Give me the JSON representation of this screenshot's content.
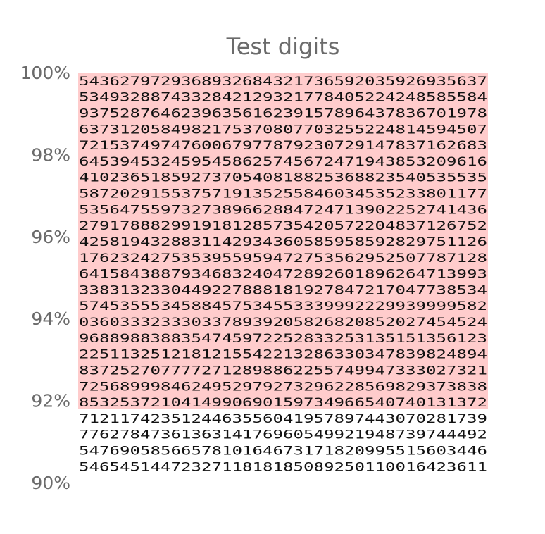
{
  "chart_data": {
    "type": "heatmap",
    "title": "Test digits",
    "xlabel": "",
    "ylabel": "",
    "ylim": [
      90,
      100
    ],
    "y_ticks": [
      {
        "value": 100,
        "label": "100%"
      },
      {
        "value": 98,
        "label": "98%"
      },
      {
        "value": 96,
        "label": "96%"
      },
      {
        "value": 94,
        "label": "94%"
      },
      {
        "value": 92,
        "label": "92%"
      },
      {
        "value": 90,
        "label": "90%"
      }
    ],
    "grid": false,
    "legend": "none",
    "highlight_above": 91.8,
    "highlight_color": "#ffcccc",
    "ink_color": "#111111",
    "rows": [
      "5436279729368932684321736592035926935637",
      "5349328874332842129321778405224248585584",
      "9375287646239635616239157896437836701978",
      "6373120584982175370807703255224814594507",
      "7215374974760067977879230729147837162683",
      "6453945324595458625745672471943853209616",
      "4102365185927370540818825368823540535535",
      "5872029155375719135255846034535233801177",
      "5356475597327389662884724713902252741436",
      "2791788829919181285735420572204837126752",
      "4258194328831142934360585958592829751126",
      "1762324275353955959472753562952507787128",
      "6415843887934683240472892601896264713993",
      "3383132330449227888181927847217047738534",
      "5745355534588457534553339992229939999582",
      "0360333233303378939205826820852027454524",
      "9688988388354745972252833253135151356123",
      "2251132512181215542213286330347839824894",
      "8372527077772712898862255749947333027321",
      "7256899984624952979273296228569829373838",
      "8532537210414990690159734966540740131372",
      "7121174235124463556041957897443070281739",
      "7762784736136314176960549921948739744492",
      "5476905856657810164673171820995515603446",
      "5465451447232711818185089250110016423611"
    ]
  }
}
